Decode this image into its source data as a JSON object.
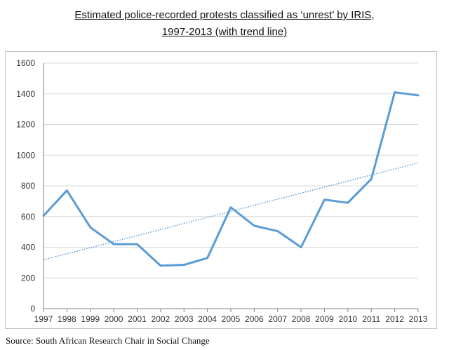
{
  "chart_data": {
    "type": "line",
    "title_line1": "Estimated police-recorded protests classified as ‘unrest’ by IRIS,",
    "title_line2": "1997-2013 (with trend line)",
    "xlabel": "",
    "ylabel": "",
    "categories": [
      "1997",
      "1998",
      "1999",
      "2000",
      "2001",
      "2002",
      "2003",
      "2004",
      "2005",
      "2006",
      "2007",
      "2008",
      "2009",
      "2010",
      "2011",
      "2012",
      "2013"
    ],
    "series": [
      {
        "values": [
          605,
          770,
          530,
          420,
          420,
          280,
          285,
          330,
          660,
          540,
          505,
          400,
          710,
          690,
          845,
          1410,
          1390
        ]
      }
    ],
    "trend_line": {
      "start": 318,
      "end": 950
    },
    "ylim": [
      0,
      1600
    ],
    "yticks": [
      0,
      200,
      400,
      600,
      800,
      1000,
      1200,
      1400,
      1600
    ],
    "grid": true,
    "colors": {
      "series": "#5b9bd5",
      "trend": "#4a8fd0",
      "grid": "#d9d9d9",
      "axis": "#808080"
    }
  },
  "source": "Source: South African Research Chair in Social Change"
}
